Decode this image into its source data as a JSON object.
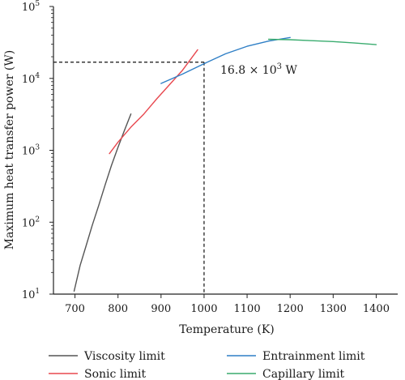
{
  "chart_data": {
    "type": "line",
    "xlabel": "Temperature (K)",
    "ylabel": "Maximum heat transfer power (W)",
    "yscale": "log",
    "xlim": [
      650,
      1450
    ],
    "ylim": [
      10,
      100000
    ],
    "grid": false,
    "xticks": [
      {
        "value": 700,
        "label": "700"
      },
      {
        "value": 800,
        "label": "800"
      },
      {
        "value": 900,
        "label": "900"
      },
      {
        "value": 1000,
        "label": "1000"
      },
      {
        "value": 1100,
        "label": "1100"
      },
      {
        "value": 1200,
        "label": "1200"
      },
      {
        "value": 1300,
        "label": "1300"
      },
      {
        "value": 1400,
        "label": "1400"
      }
    ],
    "yticks": [
      {
        "value": 10,
        "base": "10",
        "exp": "1"
      },
      {
        "value": 100,
        "base": "10",
        "exp": "2"
      },
      {
        "value": 1000,
        "base": "10",
        "exp": "3"
      },
      {
        "value": 10000,
        "base": "10",
        "exp": "4"
      },
      {
        "value": 100000,
        "base": "10",
        "exp": "5"
      }
    ],
    "legend_position": "bottom",
    "series": [
      {
        "name": "Viscosity limit",
        "color": "#555555",
        "x": [
          698,
          712,
          725,
          740,
          755,
          770,
          785,
          800,
          815,
          830
        ],
        "y": [
          11,
          25,
          45,
          90,
          170,
          330,
          620,
          1100,
          1900,
          3200
        ]
      },
      {
        "name": "Sonic limit",
        "color": "#e8484f",
        "x": [
          780,
          800,
          830,
          860,
          890,
          920,
          950,
          985
        ],
        "y": [
          900,
          1300,
          2100,
          3200,
          5200,
          8200,
          13000,
          25000
        ]
      },
      {
        "name": "Entrainment limit",
        "color": "#2f7fc6",
        "x": [
          900,
          950,
          1000,
          1050,
          1100,
          1150,
          1200
        ],
        "y": [
          8500,
          11500,
          16000,
          22000,
          28000,
          33000,
          37000
        ]
      },
      {
        "name": "Capillary limit",
        "color": "#3aac6f",
        "x": [
          1150,
          1200,
          1250,
          1300,
          1350,
          1400
        ],
        "y": [
          35000,
          34500,
          33500,
          32500,
          31000,
          29500
        ]
      }
    ],
    "reference": {
      "x": 1000,
      "y": 16800
    },
    "annotation": {
      "prefix": "16.8 × 10",
      "exp": "3",
      "suffix": " W"
    }
  }
}
